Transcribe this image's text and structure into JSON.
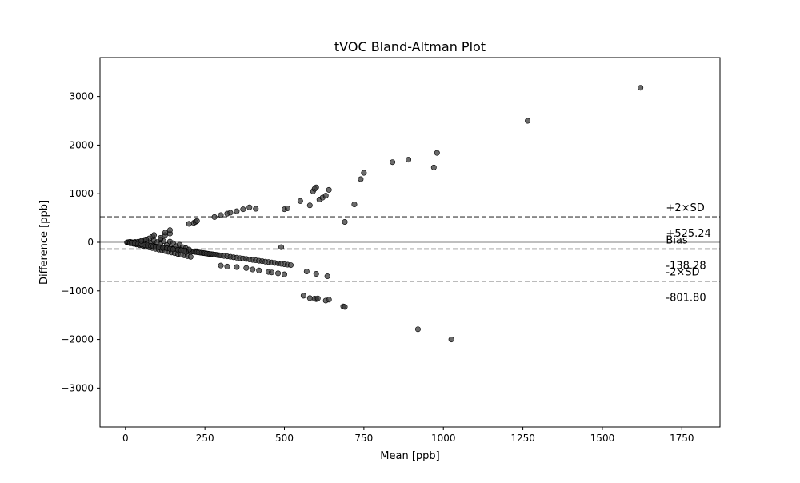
{
  "chart_data": {
    "type": "scatter",
    "title": "tVOC Bland-Altman Plot",
    "xlabel": "Mean [ppb]",
    "ylabel": "Difference [ppb]",
    "xlim": [
      -80,
      1870
    ],
    "ylim": [
      -3800,
      3800
    ],
    "xticks": [
      0,
      250,
      500,
      750,
      1000,
      1250,
      1500,
      1750
    ],
    "yticks": [
      -3000,
      -2000,
      -1000,
      0,
      1000,
      2000,
      3000
    ],
    "ytick_labels": [
      "−3000",
      "−2000",
      "−1000",
      "0",
      "1000",
      "2000",
      "3000"
    ],
    "grid": false,
    "point_color": "#3a3a3a",
    "reference_lines": [
      {
        "name": "+2×SD",
        "value": 525.24,
        "value_label": "+525.24",
        "style": "dashed"
      },
      {
        "name": "Bias",
        "value": -138.28,
        "value_label": "-138.28",
        "style": "dashed"
      },
      {
        "name": "-2×SD",
        "value": -801.8,
        "value_label": "-801.80",
        "style": "dashed"
      },
      {
        "name": "",
        "value": 0,
        "value_label": "",
        "style": "solid"
      }
    ],
    "annotation_x": 1700,
    "x": [
      5,
      8,
      10,
      12,
      15,
      18,
      20,
      22,
      25,
      28,
      30,
      32,
      35,
      38,
      40,
      42,
      45,
      48,
      50,
      55,
      60,
      65,
      70,
      75,
      80,
      85,
      90,
      95,
      100,
      105,
      110,
      115,
      120,
      125,
      130,
      135,
      140,
      145,
      150,
      155,
      160,
      165,
      170,
      175,
      180,
      185,
      190,
      195,
      200,
      205,
      210,
      215,
      220,
      225,
      230,
      235,
      240,
      245,
      250,
      255,
      260,
      265,
      270,
      275,
      280,
      285,
      290,
      295,
      300,
      310,
      320,
      330,
      340,
      350,
      360,
      370,
      380,
      390,
      400,
      410,
      420,
      430,
      440,
      450,
      460,
      470,
      480,
      490,
      500,
      510,
      520,
      560,
      580,
      595,
      600,
      605,
      630,
      640,
      685,
      690,
      10,
      15,
      20,
      25,
      30,
      35,
      40,
      45,
      50,
      55,
      60,
      70,
      80,
      90,
      100,
      110,
      120,
      130,
      140,
      150,
      160,
      170,
      180,
      190,
      200,
      15,
      25,
      35,
      45,
      55,
      65,
      75,
      85,
      95,
      105,
      115,
      125,
      135,
      145,
      155,
      165,
      175,
      185,
      195,
      205,
      60,
      75,
      85,
      110,
      125,
      140,
      170,
      190,
      300,
      320,
      350,
      380,
      400,
      420,
      450,
      460,
      480,
      500,
      570,
      600,
      635,
      20,
      30,
      40,
      50,
      60,
      70,
      80,
      88,
      95,
      105,
      118,
      130,
      140,
      150,
      165,
      175,
      185,
      50,
      65,
      90,
      110,
      125,
      140,
      200,
      215,
      220,
      225,
      280,
      300,
      320,
      330,
      350,
      370,
      390,
      410,
      500,
      510,
      550,
      580,
      590,
      595,
      600,
      610,
      620,
      630,
      640,
      690,
      720,
      740,
      750,
      840,
      890,
      970,
      980,
      1265,
      1620,
      490,
      920,
      1025
    ],
    "y": [
      -3,
      -6,
      -8,
      -10,
      -13,
      -15,
      -18,
      -20,
      -22,
      -25,
      -27,
      -29,
      -31,
      -34,
      -36,
      -38,
      -40,
      -42,
      -45,
      -50,
      -54,
      -59,
      -63,
      -68,
      -72,
      -77,
      -82,
      -86,
      -91,
      -95,
      -100,
      -104,
      -109,
      -113,
      -118,
      -122,
      -127,
      -131,
      -136,
      -140,
      -145,
      -149,
      -154,
      -158,
      -163,
      -167,
      -172,
      -176,
      -181,
      -185,
      -190,
      -194,
      -199,
      -204,
      -208,
      -213,
      -217,
      -222,
      -227,
      -231,
      -236,
      -240,
      -245,
      -249,
      -254,
      -258,
      -263,
      -267,
      -272,
      -281,
      -290,
      -299,
      -308,
      -317,
      -326,
      -335,
      -344,
      -353,
      -362,
      -371,
      -380,
      -389,
      -398,
      -407,
      -416,
      -425,
      -434,
      -443,
      -452,
      -461,
      -470,
      -1100,
      -1150,
      -1160,
      -1170,
      -1155,
      -1200,
      -1180,
      -1320,
      -1330,
      5,
      10,
      0,
      -5,
      8,
      -2,
      12,
      -8,
      15,
      -10,
      20,
      10,
      -15,
      30,
      5,
      -40,
      25,
      -60,
      15,
      -20,
      -80,
      -50,
      -100,
      -120,
      -150,
      -20,
      -30,
      -45,
      -60,
      -75,
      -90,
      -105,
      -120,
      -135,
      -150,
      -165,
      -180,
      -195,
      -210,
      -225,
      -240,
      -255,
      -270,
      -285,
      -300,
      50,
      80,
      120,
      60,
      150,
      180,
      -150,
      -200,
      -480,
      -500,
      -510,
      -530,
      -560,
      -580,
      -610,
      -620,
      -640,
      -660,
      -600,
      -650,
      -700,
      -10,
      -20,
      -30,
      -40,
      -55,
      -65,
      -75,
      -85,
      -95,
      -105,
      -115,
      -125,
      -135,
      -145,
      -155,
      -165,
      -175,
      30,
      60,
      150,
      90,
      200,
      250,
      380,
      400,
      420,
      440,
      520,
      560,
      590,
      610,
      640,
      680,
      720,
      690,
      680,
      700,
      850,
      760,
      1050,
      1100,
      1130,
      880,
      920,
      960,
      1080,
      420,
      780,
      1300,
      1430,
      1650,
      1700,
      1540,
      1840,
      2500,
      3180,
      -100,
      -1790,
      -2000
    ]
  }
}
